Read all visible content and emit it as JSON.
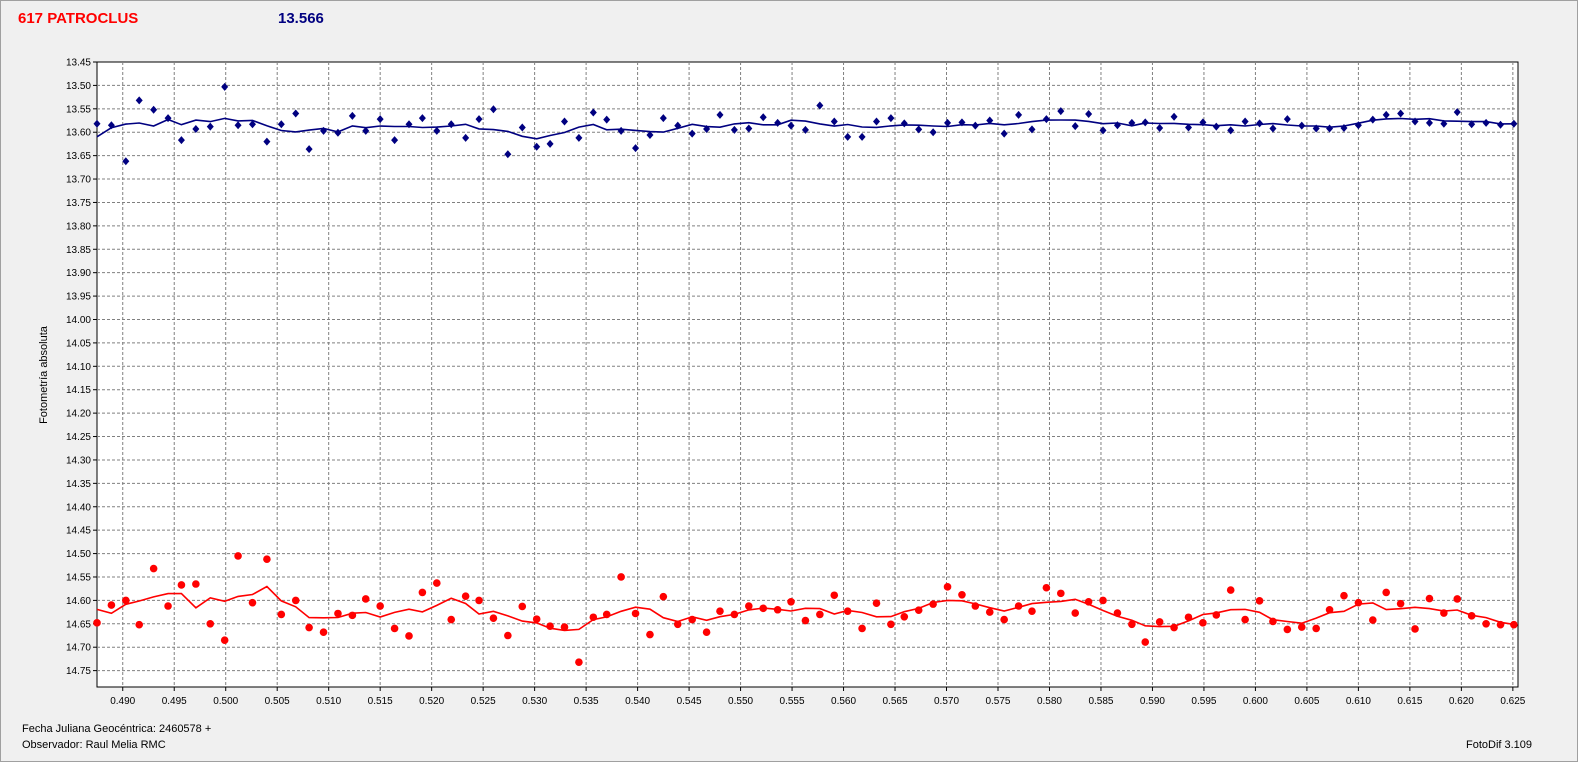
{
  "header": {
    "object_name": "617 PATROCLUS",
    "magnitude": "13.566"
  },
  "footer": {
    "jd_label": "Fecha Juliana Geocéntrica: 2460578 +",
    "observer": "Observador: Raul Melia RMC",
    "software": "FotoDif 3.109"
  },
  "chart_data": {
    "type": "scatter",
    "ylabel": "Fotometría absoluta",
    "xlabel": "",
    "xlim": [
      0.4875,
      0.6255
    ],
    "ylim": [
      13.45,
      14.785
    ],
    "y_inverted": true,
    "grid": true,
    "x_ticks": [
      "0.490",
      "0.495",
      "0.500",
      "0.505",
      "0.510",
      "0.515",
      "0.520",
      "0.525",
      "0.530",
      "0.535",
      "0.540",
      "0.545",
      "0.550",
      "0.555",
      "0.560",
      "0.565",
      "0.570",
      "0.575",
      "0.580",
      "0.585",
      "0.590",
      "0.595",
      "0.600",
      "0.605",
      "0.610",
      "0.615",
      "0.620",
      "0.625"
    ],
    "y_ticks": [
      "13.45",
      "13.50",
      "13.55",
      "13.60",
      "13.65",
      "13.70",
      "13.75",
      "13.80",
      "13.85",
      "13.90",
      "13.95",
      "14.00",
      "14.05",
      "14.10",
      "14.15",
      "14.20",
      "14.25",
      "14.30",
      "14.35",
      "14.40",
      "14.45",
      "14.50",
      "14.55",
      "14.60",
      "14.65",
      "14.70",
      "14.75"
    ],
    "series": [
      {
        "color": "#000080",
        "marker": "diamond",
        "x": [
          0.4875,
          0.4889,
          0.4903,
          0.4916,
          0.493,
          0.4944,
          0.4957,
          0.4971,
          0.4985,
          0.4999,
          0.5012,
          0.5026,
          0.504,
          0.5054,
          0.5068,
          0.5081,
          0.5095,
          0.5109,
          0.5123,
          0.5136,
          0.515,
          0.5164,
          0.5178,
          0.5191,
          0.5205,
          0.5219,
          0.5233,
          0.5246,
          0.526,
          0.5274,
          0.5288,
          0.5302,
          0.5315,
          0.5329,
          0.5343,
          0.5357,
          0.537,
          0.5384,
          0.5398,
          0.5412,
          0.5425,
          0.5439,
          0.5453,
          0.5467,
          0.548,
          0.5494,
          0.5508,
          0.5522,
          0.5536,
          0.5549,
          0.5563,
          0.5577,
          0.5591,
          0.5604,
          0.5618,
          0.5632,
          0.5646,
          0.5659,
          0.5673,
          0.5687,
          0.5701,
          0.5715,
          0.5728,
          0.5742,
          0.5756,
          0.577,
          0.5783,
          0.5797,
          0.5811,
          0.5825,
          0.5838,
          0.5852,
          0.5866,
          0.588,
          0.5893,
          0.5907,
          0.5921,
          0.5935,
          0.5949,
          0.5962,
          0.5976,
          0.599,
          0.6004,
          0.6017,
          0.6031,
          0.6045,
          0.6059,
          0.6072,
          0.6086,
          0.61,
          0.6114,
          0.6127,
          0.6141,
          0.6155,
          0.6169,
          0.6183,
          0.6196,
          0.621,
          0.6224,
          0.6238,
          0.6251
        ],
        "y": [
          13.582,
          13.585,
          13.662,
          13.532,
          13.552,
          13.57,
          13.617,
          13.593,
          13.588,
          13.503,
          13.585,
          13.583,
          13.62,
          13.583,
          13.56,
          13.636,
          13.597,
          13.601,
          13.565,
          13.597,
          13.572,
          13.617,
          13.583,
          13.57,
          13.597,
          13.583,
          13.612,
          13.572,
          13.551,
          13.647,
          13.59,
          13.631,
          13.625,
          13.577,
          13.612,
          13.558,
          13.573,
          13.597,
          13.634,
          13.606,
          13.57,
          13.586,
          13.603,
          13.593,
          13.563,
          13.595,
          13.592,
          13.568,
          13.58,
          13.586,
          13.595,
          13.543,
          13.577,
          13.61,
          13.61,
          13.577,
          13.57,
          13.581,
          13.594,
          13.6,
          13.58,
          13.579,
          13.586,
          13.575,
          13.603,
          13.563,
          13.594,
          13.572,
          13.555,
          13.587,
          13.561,
          13.596,
          13.585,
          13.58,
          13.579,
          13.591,
          13.567,
          13.59,
          13.579,
          13.588,
          13.596,
          13.577,
          13.581,
          13.592,
          13.572,
          13.586,
          13.592,
          13.592,
          13.591,
          13.585,
          13.573,
          13.563,
          13.56,
          13.577,
          13.58,
          13.582,
          13.557,
          13.583,
          13.58,
          13.584,
          13.582
        ]
      },
      {
        "color": "#ff0000",
        "marker": "circle",
        "x": [
          0.4875,
          0.4889,
          0.4903,
          0.4916,
          0.493,
          0.4944,
          0.4957,
          0.4971,
          0.4985,
          0.4999,
          0.5012,
          0.5026,
          0.504,
          0.5054,
          0.5068,
          0.5081,
          0.5095,
          0.5109,
          0.5123,
          0.5136,
          0.515,
          0.5164,
          0.5178,
          0.5191,
          0.5205,
          0.5219,
          0.5233,
          0.5246,
          0.526,
          0.5274,
          0.5288,
          0.5302,
          0.5315,
          0.5329,
          0.5343,
          0.5357,
          0.537,
          0.5384,
          0.5398,
          0.5412,
          0.5425,
          0.5439,
          0.5453,
          0.5467,
          0.548,
          0.5494,
          0.5508,
          0.5522,
          0.5536,
          0.5549,
          0.5563,
          0.5577,
          0.5591,
          0.5604,
          0.5618,
          0.5632,
          0.5646,
          0.5659,
          0.5673,
          0.5687,
          0.5701,
          0.5715,
          0.5728,
          0.5742,
          0.5756,
          0.577,
          0.5783,
          0.5797,
          0.5811,
          0.5825,
          0.5838,
          0.5852,
          0.5866,
          0.588,
          0.5893,
          0.5907,
          0.5921,
          0.5935,
          0.5949,
          0.5962,
          0.5976,
          0.599,
          0.6004,
          0.6017,
          0.6031,
          0.6045,
          0.6059,
          0.6072,
          0.6086,
          0.61,
          0.6114,
          0.6127,
          0.6141,
          0.6155,
          0.6169,
          0.6183,
          0.6196,
          0.621,
          0.6224,
          0.6238,
          0.6251
        ],
        "y": [
          14.648,
          14.61,
          14.6,
          14.652,
          14.532,
          14.612,
          14.567,
          14.565,
          14.65,
          14.685,
          14.505,
          14.605,
          14.512,
          14.63,
          14.6,
          14.658,
          14.668,
          14.628,
          14.632,
          14.597,
          14.612,
          14.66,
          14.676,
          14.583,
          14.563,
          14.641,
          14.591,
          14.6,
          14.638,
          14.675,
          14.613,
          14.64,
          14.655,
          14.657,
          14.732,
          14.636,
          14.63,
          14.55,
          14.628,
          14.673,
          14.592,
          14.651,
          14.641,
          14.668,
          14.623,
          14.63,
          14.612,
          14.617,
          14.62,
          14.603,
          14.643,
          14.63,
          14.589,
          14.623,
          14.66,
          14.606,
          14.651,
          14.635,
          14.621,
          14.608,
          14.571,
          14.588,
          14.612,
          14.625,
          14.641,
          14.612,
          14.623,
          14.573,
          14.585,
          14.627,
          14.603,
          14.6,
          14.627,
          14.651,
          14.689,
          14.646,
          14.658,
          14.636,
          14.648,
          14.631,
          14.578,
          14.641,
          14.601,
          14.645,
          14.662,
          14.657,
          14.66,
          14.62,
          14.59,
          14.605,
          14.642,
          14.583,
          14.607,
          14.661,
          14.596,
          14.627,
          14.597,
          14.633,
          14.65,
          14.652,
          14.652
        ]
      }
    ]
  }
}
